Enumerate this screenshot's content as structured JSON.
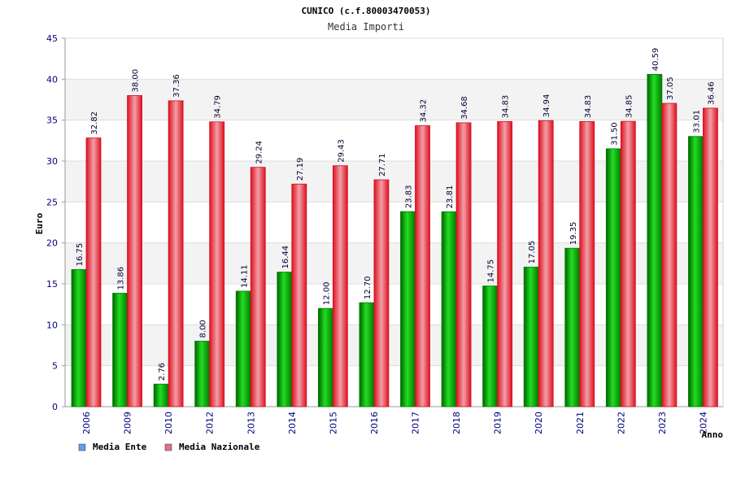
{
  "chart_data": {
    "type": "bar",
    "title": "CUNICO (c.f.80003470053)",
    "subtitle": "Media Importi",
    "xlabel": "Anno",
    "ylabel": "Euro",
    "ylim": [
      0,
      45
    ],
    "yticks": [
      "0",
      "5",
      "10",
      "15",
      "20",
      "25",
      "30",
      "35",
      "40",
      "45"
    ],
    "ytick_values": [
      0,
      5,
      10,
      15,
      20,
      25,
      30,
      35,
      40,
      45
    ],
    "categories": [
      "2006",
      "2009",
      "2010",
      "2012",
      "2013",
      "2014",
      "2015",
      "2016",
      "2017",
      "2018",
      "2019",
      "2020",
      "2021",
      "2022",
      "2023",
      "2024"
    ],
    "series": [
      {
        "name": "Media Ente",
        "color": "#00b400",
        "legend_color": "#5aa0f0",
        "values": [
          16.75,
          13.86,
          2.76,
          8.0,
          14.11,
          16.44,
          12.0,
          12.7,
          23.83,
          23.81,
          14.75,
          17.05,
          19.35,
          31.5,
          40.59,
          33.01
        ],
        "labels": [
          "16.75",
          "13.86",
          "2.76",
          "8.00",
          "14.11",
          "16.44",
          "12.00",
          "12.70",
          "23.83",
          "23.81",
          "14.75",
          "17.05",
          "19.35",
          "31.50",
          "40.59",
          "33.01"
        ]
      },
      {
        "name": "Media Nazionale",
        "color": "#e8202a",
        "legend_color": "#e07090",
        "values": [
          32.82,
          38.0,
          37.36,
          34.79,
          29.24,
          27.19,
          29.43,
          27.71,
          34.32,
          34.68,
          34.83,
          34.94,
          34.83,
          34.85,
          37.05,
          36.46
        ],
        "labels": [
          "32.82",
          "38.00",
          "37.36",
          "34.79",
          "29.24",
          "27.19",
          "29.43",
          "27.71",
          "34.32",
          "34.68",
          "34.83",
          "34.94",
          "34.83",
          "34.85",
          "37.05",
          "36.46"
        ]
      }
    ],
    "grid": true,
    "legend_position": "bottom-left"
  }
}
